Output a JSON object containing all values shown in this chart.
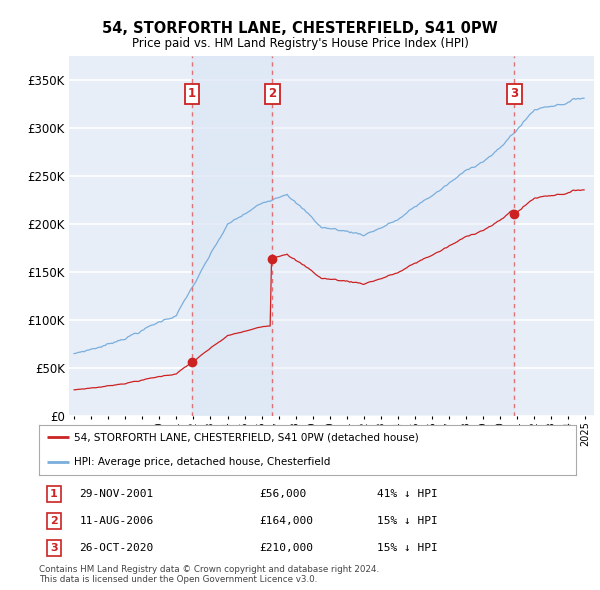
{
  "title": "54, STORFORTH LANE, CHESTERFIELD, S41 0PW",
  "subtitle": "Price paid vs. HM Land Registry's House Price Index (HPI)",
  "hpi_label": "HPI: Average price, detached house, Chesterfield",
  "property_label": "54, STORFORTH LANE, CHESTERFIELD, S41 0PW (detached house)",
  "transactions": [
    {
      "num": 1,
      "date": "29-NOV-2001",
      "price": 56000,
      "year": 2001.91,
      "hpi_note": "41% ↓ HPI"
    },
    {
      "num": 2,
      "date": "11-AUG-2006",
      "price": 164000,
      "year": 2006.62,
      "hpi_note": "15% ↓ HPI"
    },
    {
      "num": 3,
      "date": "26-OCT-2020",
      "price": 210000,
      "year": 2020.82,
      "hpi_note": "15% ↓ HPI"
    }
  ],
  "ylabel_ticks": [
    "£0",
    "£50K",
    "£100K",
    "£150K",
    "£200K",
    "£250K",
    "£300K",
    "£350K"
  ],
  "ytick_values": [
    0,
    50000,
    100000,
    150000,
    200000,
    250000,
    300000,
    350000
  ],
  "ylim": [
    0,
    375000
  ],
  "xlim_start": 1994.7,
  "xlim_end": 2025.5,
  "background_color": "#ffffff",
  "plot_bg_color": "#e8eef8",
  "grid_color": "#ffffff",
  "hpi_color": "#7aaedc",
  "property_color": "#cc2222",
  "vline_color": "#dd6666",
  "shade_color": "#dce6f5",
  "transaction_dot_color": "#cc2222",
  "footnote": "Contains HM Land Registry data © Crown copyright and database right 2024.\nThis data is licensed under the Open Government Licence v3.0."
}
